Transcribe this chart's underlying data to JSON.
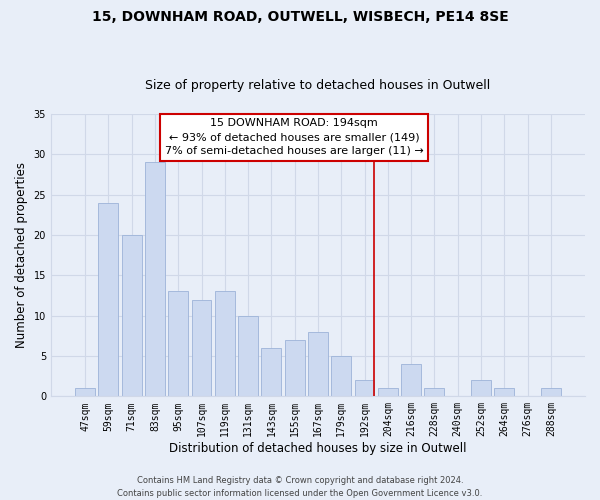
{
  "title": "15, DOWNHAM ROAD, OUTWELL, WISBECH, PE14 8SE",
  "subtitle": "Size of property relative to detached houses in Outwell",
  "xlabel": "Distribution of detached houses by size in Outwell",
  "ylabel": "Number of detached properties",
  "bar_labels": [
    "47sqm",
    "59sqm",
    "71sqm",
    "83sqm",
    "95sqm",
    "107sqm",
    "119sqm",
    "131sqm",
    "143sqm",
    "155sqm",
    "167sqm",
    "179sqm",
    "192sqm",
    "204sqm",
    "216sqm",
    "228sqm",
    "240sqm",
    "252sqm",
    "264sqm",
    "276sqm",
    "288sqm"
  ],
  "bar_values": [
    1,
    24,
    20,
    29,
    13,
    12,
    13,
    10,
    6,
    7,
    8,
    5,
    2,
    1,
    4,
    1,
    0,
    2,
    1,
    0,
    1
  ],
  "bar_color": "#ccd9f0",
  "bar_edge_color": "#9db3d8",
  "reference_line_x_label": "192sqm",
  "reference_line_color": "#cc0000",
  "annotation_title": "15 DOWNHAM ROAD: 194sqm",
  "annotation_line1": "← 93% of detached houses are smaller (149)",
  "annotation_line2": "7% of semi-detached houses are larger (11) →",
  "annotation_box_color": "#ffffff",
  "annotation_box_edge": "#cc0000",
  "ylim": [
    0,
    35
  ],
  "yticks": [
    0,
    5,
    10,
    15,
    20,
    25,
    30,
    35
  ],
  "grid_color": "#d0d8e8",
  "background_color": "#e8eef8",
  "footer_line1": "Contains HM Land Registry data © Crown copyright and database right 2024.",
  "footer_line2": "Contains public sector information licensed under the Open Government Licence v3.0.",
  "title_fontsize": 10,
  "subtitle_fontsize": 9,
  "axis_label_fontsize": 8.5,
  "tick_fontsize": 7,
  "annotation_fontsize": 8,
  "footer_fontsize": 6
}
